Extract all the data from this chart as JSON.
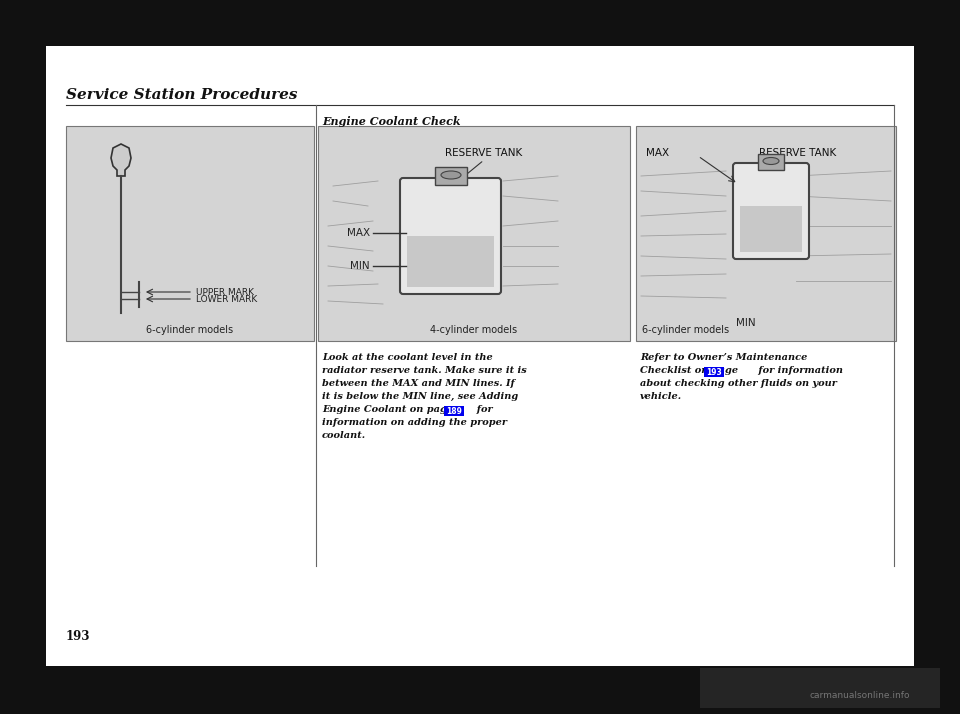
{
  "page_bg": "#111111",
  "inner_bg": "#f0f0f0",
  "section_title": "Service Station Procedures",
  "section_title_color": "#111111",
  "section_title_size": 11,
  "subsection_title": "Engine Coolant Check",
  "subsection_title_color": "#111111",
  "subsection_title_size": 8,
  "body_text_color": "#111111",
  "body_text_size": 7,
  "highlight_color": "#0000ee",
  "panel_bg": "#d4d4d4",
  "panel_border": "#777777",
  "inner_page_bg": "#e8e8e8",
  "line_color": "#555555",
  "divider_color": "#666666",
  "page_num_text": "193",
  "panel1_label": "6-cylinder models",
  "panel2_label": "4-cylinder models",
  "panel3_label": "6-cylinder models",
  "panel2_marks": [
    "RESERVE TANK",
    "MAX",
    "MIN"
  ],
  "panel3_marks_max": "MAX",
  "panel3_marks_res": "RESERVE TANK",
  "panel3_marks_min": "MIN",
  "panel1_marks": [
    "UPPER MARK",
    "LOWER MARK"
  ],
  "body_lines": [
    "Look at the coolant level in the",
    "radiator reserve tank. Make sure it is",
    "between the MAX and MIN lines. If",
    "it is below the MIN line, see Adding",
    "Engine Coolant on page       for",
    "information on adding the proper",
    "coolant."
  ],
  "right_lines": [
    "Refer to Owner’s Maintenance",
    "Checklist on page      for information",
    "about checking other fluids on your",
    "vehicle."
  ],
  "watermark_text": "carmanualsonline.info",
  "page_ref_mid": "189",
  "page_ref_right": "193"
}
